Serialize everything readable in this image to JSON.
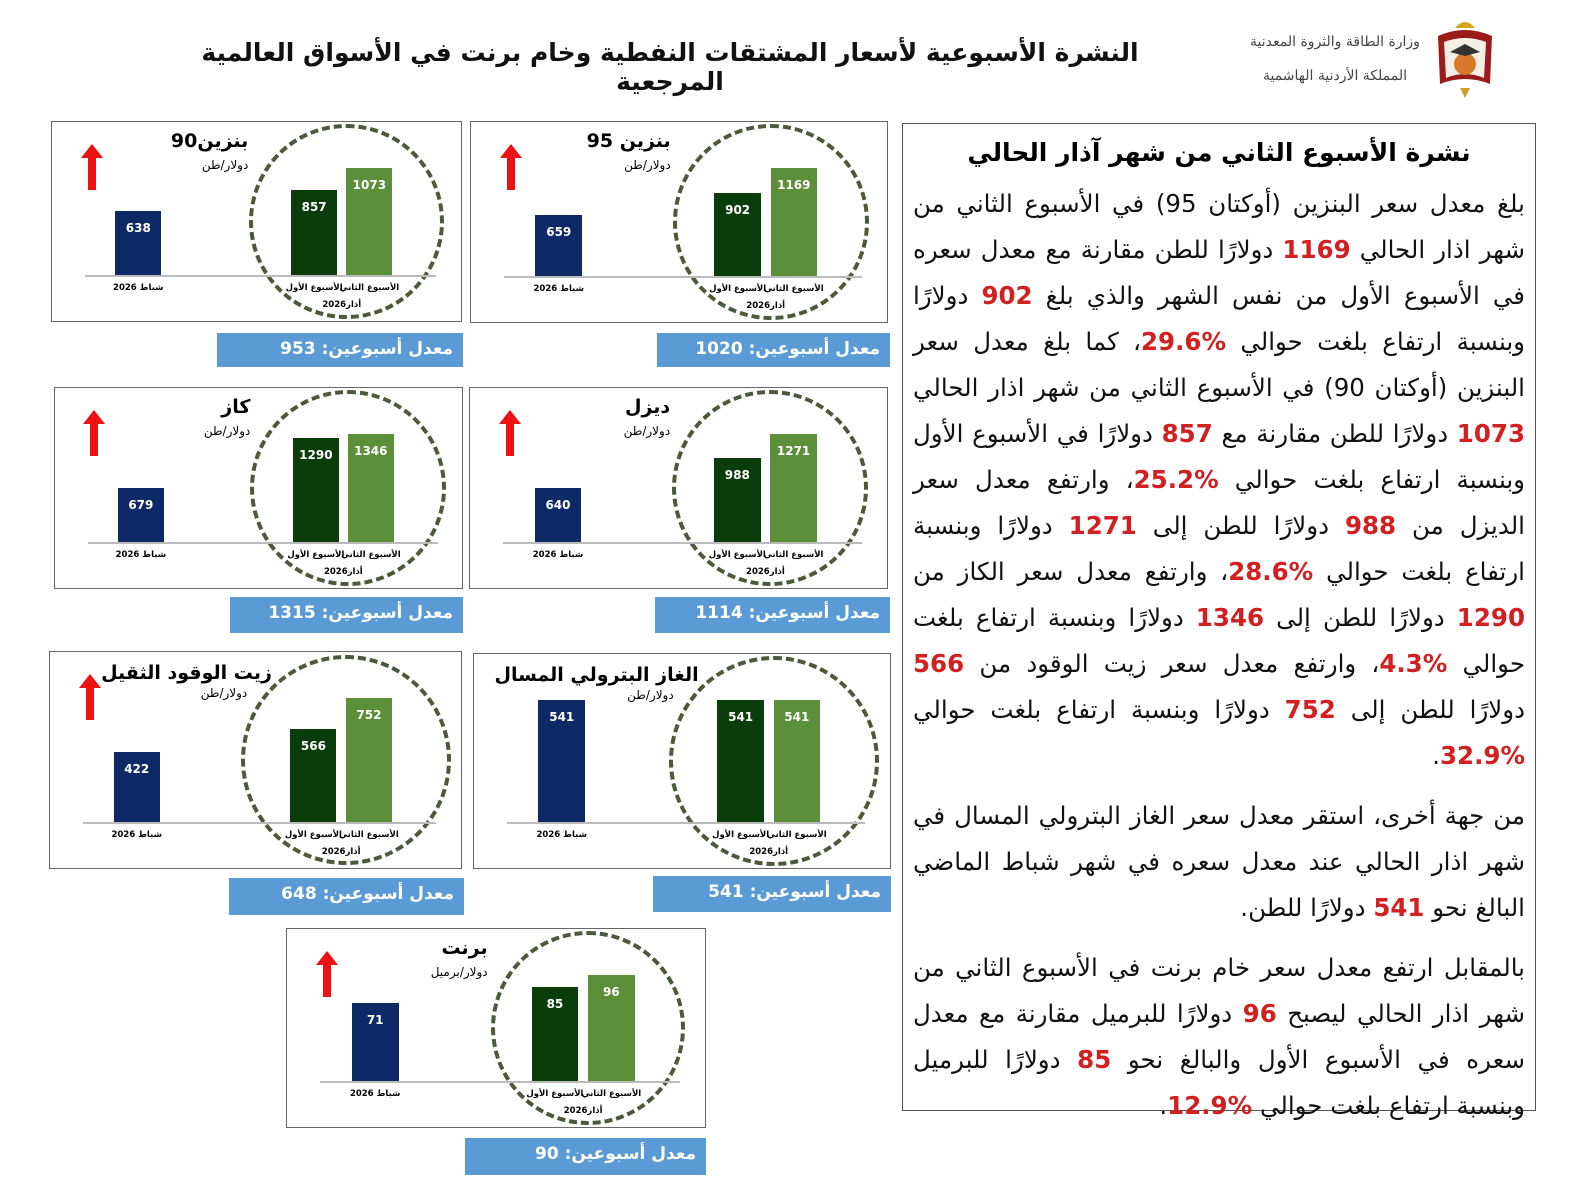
{
  "header": {
    "title": "النشرة الأسبوعية لأسعار المشتقات النفطية وخام برنت في الأسواق العالمية المرجعية",
    "logo_line1": "وزارة الطاقة والثروة المعدنية",
    "logo_line2": "المملكة الأردنية الهاشمية"
  },
  "panel": {
    "heading": "نشرة الأسبوع الثاني من شهر آذار الحالي",
    "paragraphs": [
      [
        {
          "t": "بلغ معدل سعر البنزين (أوكتان 95) في الأسبوع الثاني من شهر اذار الحالي "
        },
        {
          "t": "1169",
          "h": 1
        },
        {
          "t": " دولارًا للطن مقارنة مع معدل سعره في الأسبوع الأول من نفس الشهر والذي بلغ "
        },
        {
          "t": "902",
          "h": 1
        },
        {
          "t": " دولارًا وبنسبة ارتفاع بلغت حوالي "
        },
        {
          "t": "%29.6",
          "h": 1
        },
        {
          "t": "، كما بلغ معدل سعر البنزين (أوكتان 90) في الأسبوع الثاني من شهر اذار الحالي "
        },
        {
          "t": "1073",
          "h": 1
        },
        {
          "t": " دولارًا للطن مقارنة مع "
        },
        {
          "t": "857",
          "h": 1
        },
        {
          "t": " دولارًا في الأسبوع الأول وبنسبة ارتفاع بلغت حوالي "
        },
        {
          "t": "%25.2",
          "h": 1
        },
        {
          "t": "، وارتفع معدل سعر الديزل من "
        },
        {
          "t": "988",
          "h": 1
        },
        {
          "t": " دولارًا للطن إلى "
        },
        {
          "t": "1271",
          "h": 1
        },
        {
          "t": " دولارًا وبنسبة ارتفاع بلغت حوالي "
        },
        {
          "t": "%28.6",
          "h": 1
        },
        {
          "t": "، وارتفع معدل سعر الكاز من "
        },
        {
          "t": "1290",
          "h": 1
        },
        {
          "t": " دولارًا للطن إلى "
        },
        {
          "t": "1346",
          "h": 1
        },
        {
          "t": " دولارًا وبنسبة ارتفاع بلغت حوالي "
        },
        {
          "t": "%4.3",
          "h": 1
        },
        {
          "t": "، وارتفع معدل سعر زيت الوقود من "
        },
        {
          "t": "566",
          "h": 1
        },
        {
          "t": " دولارًا للطن إلى "
        },
        {
          "t": "752",
          "h": 1
        },
        {
          "t": " دولارًا وبنسبة ارتفاع بلغت حوالي "
        },
        {
          "t": "%32.9",
          "h": 1
        },
        {
          "t": "."
        }
      ],
      [
        {
          "t": "من جهة أخرى، استقر معدل سعر الغاز البترولي المسال في شهر اذار الحالي عند معدل سعره في شهر شباط الماضي البالغ نحو "
        },
        {
          "t": "541",
          "h": 1
        },
        {
          "t": " دولارًا للطن."
        }
      ],
      [
        {
          "t": "بالمقابل ارتفع معدل سعر خام برنت في الأسبوع الثاني من شهر اذار الحالي ليصبح "
        },
        {
          "t": "96",
          "h": 1
        },
        {
          "t": " دولارًا للبرميل مقارنة مع معدل سعره في الأسبوع الأول والبالغ نحو "
        },
        {
          "t": "85",
          "h": 1
        },
        {
          "t": " دولارًا للبرميل وبنسبة ارتفاع بلغت حوالي "
        },
        {
          "t": "%12.9",
          "h": 1
        },
        {
          "t": "."
        }
      ]
    ]
  },
  "colors": {
    "feb_bar": "#0d2a66",
    "week1_bar": "#0b3d0b",
    "week2_bar": "#5b8f3a",
    "arrow": "#ee1111",
    "highlight": "#d21f1f",
    "avg_box": "#5b9bd5"
  },
  "x_labels": {
    "feb": "شباط 2026",
    "week1": "الأسبوع الأول",
    "week2": "الأسبوع الثاني",
    "march": "أذار2026"
  },
  "chart_data": [
    {
      "type": "bar",
      "title": "بنزين 95",
      "unit": "دولار/طن",
      "categories": [
        "شباط 2026",
        "الأسبوع الأول",
        "الأسبوع الثاني"
      ],
      "values": [
        659,
        902,
        1169
      ],
      "trend": "up",
      "avg_label": "معدل أسبوعين: 1020"
    },
    {
      "type": "bar",
      "title": "بنزين90",
      "unit": "دولار/طن",
      "categories": [
        "شباط 2026",
        "الأسبوع الأول",
        "الأسبوع الثاني"
      ],
      "values": [
        638,
        857,
        1073
      ],
      "trend": "up",
      "avg_label": "معدل أسبوعين: 953"
    },
    {
      "type": "bar",
      "title": "ديزل",
      "unit": "دولار/طن",
      "categories": [
        "شباط 2026",
        "الأسبوع الأول",
        "الأسبوع الثاني"
      ],
      "values": [
        640,
        988,
        1271
      ],
      "trend": "up",
      "avg_label": "معدل أسبوعين: 1114"
    },
    {
      "type": "bar",
      "title": "كاز",
      "unit": "دولار/طن",
      "categories": [
        "شباط 2026",
        "الأسبوع الأول",
        "الأسبوع الثاني"
      ],
      "values": [
        679,
        1290,
        1346
      ],
      "trend": "up",
      "avg_label": "معدل أسبوعين: 1315"
    },
    {
      "type": "bar",
      "title": "الغاز البترولي المسال",
      "unit": "دولار/طن",
      "categories": [
        "شباط 2026",
        "الأسبوع الأول",
        "الأسبوع الثاني"
      ],
      "values": [
        541,
        541,
        541
      ],
      "trend": "none",
      "avg_label": "معدل أسبوعين: 541"
    },
    {
      "type": "bar",
      "title": "زيت الوقود الثقيل",
      "unit": "دولار/طن",
      "categories": [
        "شباط 2026",
        "الأسبوع الأول",
        "الأسبوع الثاني"
      ],
      "values": [
        422,
        566,
        752
      ],
      "trend": "up",
      "avg_label": "معدل أسبوعين: 648"
    },
    {
      "type": "bar",
      "title": "برنت",
      "unit": "دولار/برميل",
      "categories": [
        "شباط 2026",
        "الأسبوع الأول",
        "الأسبوع الثاني"
      ],
      "values": [
        71,
        85,
        96
      ],
      "trend": "up",
      "avg_label": "معدل أسبوعين: 90"
    }
  ]
}
